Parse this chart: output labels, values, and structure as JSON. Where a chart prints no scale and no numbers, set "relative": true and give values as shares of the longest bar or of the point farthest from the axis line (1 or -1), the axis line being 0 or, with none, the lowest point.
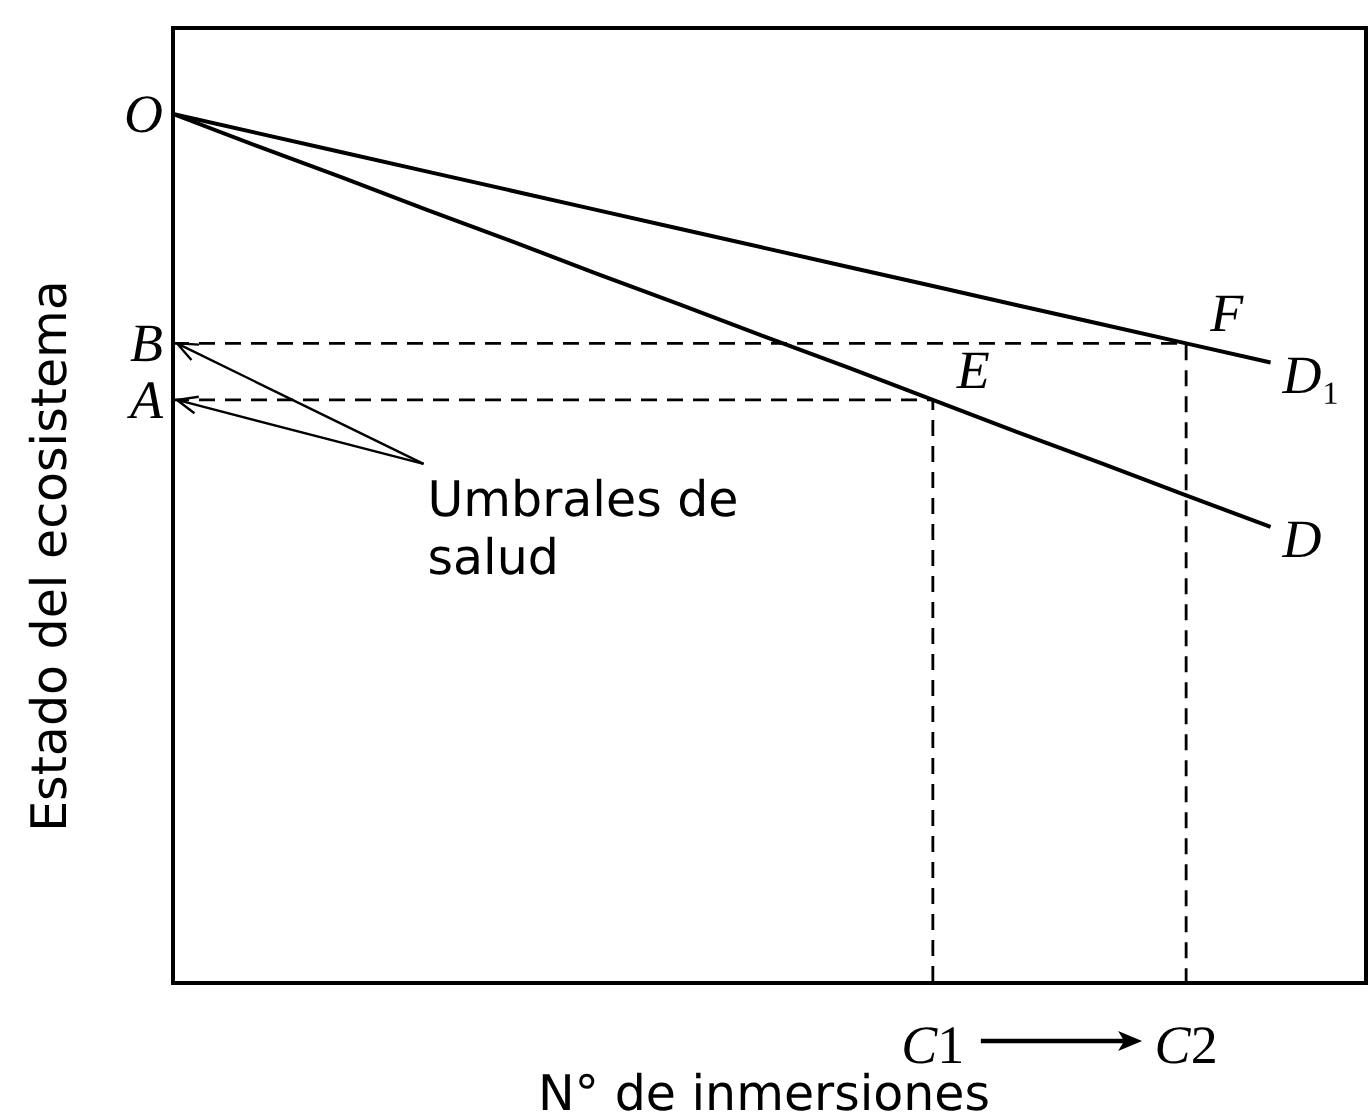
{
  "chart_data": {
    "type": "line",
    "xlabel": "N° de inmersiones",
    "ylabel": "Estado del ecosistema",
    "relative": true,
    "line_style": "solid",
    "categories": [
      null,
      null,
      null,
      null,
      null,
      null,
      null,
      null,
      null,
      "C1",
      null,
      null,
      "C2",
      null
    ],
    "series": [
      {
        "name": "D₁",
        "color": "#000000",
        "values": [
          1,
          0.978,
          0.956,
          0.934,
          0.912,
          0.89,
          0.868,
          0.846,
          0.824,
          0.802,
          0.78,
          0.758,
          0.736,
          0.714
        ]
      },
      {
        "name": "D",
        "color": "#000000",
        "values": [
          1,
          0.963,
          0.927,
          0.89,
          0.854,
          0.817,
          0.781,
          0.744,
          0.708,
          0.671,
          0.634,
          0.598,
          0.561,
          0.525
        ]
      },
      {
        "type": "step",
        "color": "#000000",
        "line_style": "dashed",
        "values": [
          0.736,
          0.736,
          0.736,
          0.736,
          0.736,
          0.736,
          0.736,
          0.736,
          0.736,
          0.736,
          0.736,
          0.736,
          0,
          null
        ]
      },
      {
        "type": "step",
        "color": "#000000",
        "line_style": "dashed",
        "values": [
          0.671,
          0.671,
          0.671,
          0.671,
          0.671,
          0.671,
          0.671,
          0.671,
          0.671,
          0,
          null,
          null,
          null,
          null
        ]
      }
    ],
    "annotations": [
      "O",
      "B",
      "A",
      {
        "text": "E",
        "x": "C1",
        "y": 0.671
      },
      {
        "text": "F",
        "x": "C2",
        "y": 0.736
      },
      "Umbrales de salud"
    ]
  }
}
